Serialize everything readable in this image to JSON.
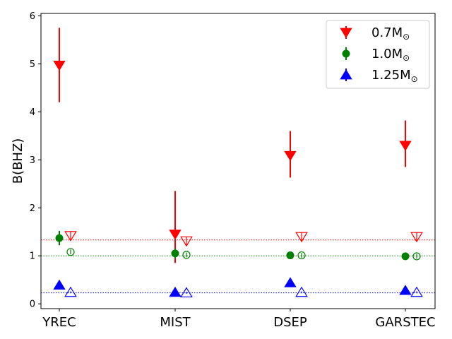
{
  "chart_data": {
    "type": "scatter",
    "title": "",
    "xlabel": "",
    "ylabel": "B(BHZ)",
    "categories": [
      "YREC",
      "MIST",
      "DSEP",
      "GARSTEC"
    ],
    "ylim": [
      -0.1,
      6.05
    ],
    "yticks": [
      0,
      1,
      2,
      3,
      4,
      5,
      6
    ],
    "grid": false,
    "legend_position": "top-right",
    "legend": [
      {
        "label_main": "0.7M",
        "label_sub": "⊙",
        "color": "#ff0000",
        "marker": "triangle-down"
      },
      {
        "label_main": "1.0M",
        "label_sub": "⊙",
        "color": "#008000",
        "marker": "circle"
      },
      {
        "label_main": "1.25M",
        "label_sub": "⊙",
        "color": "#0000ff",
        "marker": "triangle-up"
      }
    ],
    "series": [
      {
        "name": "0.7M⊙",
        "color": "#ff0000",
        "marker": "triangle-down",
        "filled": true,
        "values": [
          4.97,
          1.45,
          3.09,
          3.3
        ],
        "err_low": [
          4.2,
          0.85,
          2.63,
          2.85
        ],
        "err_high": [
          5.75,
          2.35,
          3.6,
          3.82
        ]
      },
      {
        "name": "0.7M⊙ (open)",
        "color": "#ff0000",
        "marker": "triangle-down",
        "filled": false,
        "values": [
          1.42,
          1.31,
          1.4,
          1.4
        ],
        "err_low": [
          1.33,
          1.22,
          1.31,
          1.31
        ],
        "err_high": [
          1.51,
          1.4,
          1.49,
          1.49
        ]
      },
      {
        "name": "1.0M⊙",
        "color": "#008000",
        "marker": "circle",
        "filled": true,
        "values": [
          1.37,
          1.05,
          1.01,
          0.99
        ],
        "err_low": [
          1.22,
          0.95,
          0.95,
          0.94
        ],
        "err_high": [
          1.52,
          1.15,
          1.07,
          1.04
        ]
      },
      {
        "name": "1.0M⊙ (open)",
        "color": "#008000",
        "marker": "circle",
        "filled": false,
        "values": [
          1.08,
          1.02,
          1.01,
          0.99
        ],
        "err_low": [
          1.03,
          0.97,
          0.96,
          0.94
        ],
        "err_high": [
          1.13,
          1.07,
          1.06,
          1.04
        ]
      },
      {
        "name": "1.25M⊙",
        "color": "#0000ff",
        "marker": "triangle-up",
        "filled": true,
        "values": [
          0.39,
          0.24,
          0.44,
          0.28
        ],
        "err_low": [
          0.36,
          0.21,
          0.41,
          0.25
        ],
        "err_high": [
          0.42,
          0.27,
          0.47,
          0.31
        ]
      },
      {
        "name": "1.25M⊙ (open)",
        "color": "#0000ff",
        "marker": "triangle-up",
        "filled": false,
        "values": [
          0.24,
          0.23,
          0.24,
          0.24
        ],
        "err_low": [
          0.22,
          0.21,
          0.22,
          0.22
        ],
        "err_high": [
          0.26,
          0.25,
          0.26,
          0.26
        ]
      }
    ],
    "reference_lines": [
      {
        "y": 1.33,
        "color": "#ff0000",
        "style": "dotted"
      },
      {
        "y": 1.0,
        "color": "#008000",
        "style": "dotted"
      },
      {
        "y": 0.23,
        "color": "#0000ff",
        "style": "dotted"
      }
    ]
  }
}
